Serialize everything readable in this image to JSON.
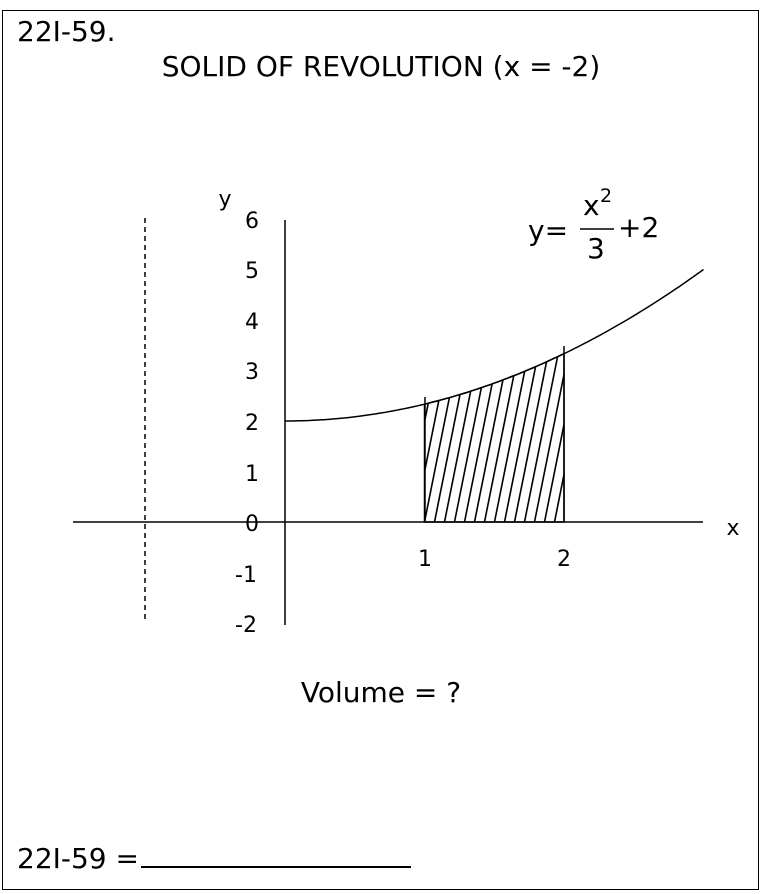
{
  "header": {
    "problem_number": "22I-59.",
    "title": "SOLID OF REVOLUTION (x = -2)"
  },
  "graph": {
    "x_axis_label": "x",
    "y_axis_label": "y",
    "y_ticks": [
      "6",
      "5",
      "4",
      "3",
      "2",
      "1",
      "0",
      "-1",
      "-2"
    ],
    "x_ticks": [
      "1",
      "2"
    ],
    "equation": {
      "lhs": "y=",
      "numerator": "x",
      "exponent": "2",
      "denominator": "3",
      "rhs": "+2"
    },
    "axis_of_revolution_x": -2,
    "shaded_region": {
      "x_from": 1,
      "x_to": 2
    }
  },
  "question": "Volume = ?",
  "answer": {
    "label": "22I-59 ="
  }
}
